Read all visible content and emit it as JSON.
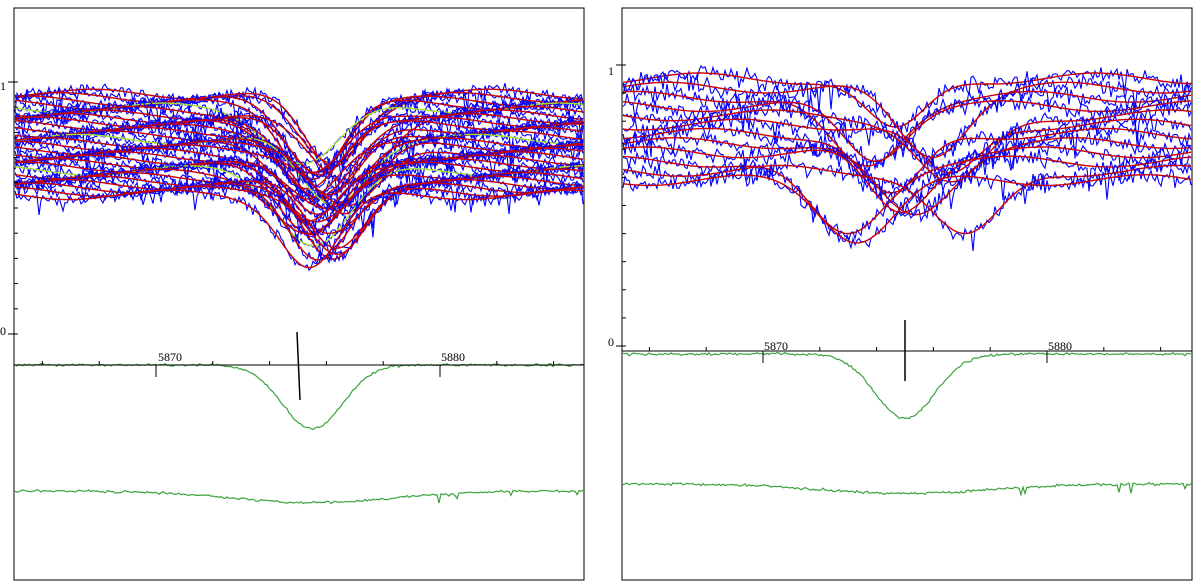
{
  "figure": {
    "panels": [
      {
        "y_tick_labels": [
          "1",
          "0"
        ],
        "x_tick_labels": [
          "5870",
          "5880"
        ]
      },
      {
        "y_tick_labels": [
          "1",
          "0"
        ],
        "x_tick_labels": [
          "5870",
          "5880"
        ]
      }
    ]
  },
  "chart_data": [
    {
      "type": "line",
      "panel": "left",
      "title": "",
      "xlabel": "",
      "ylabel": "",
      "xlim": [
        5865.1,
        5885.0
      ],
      "ylim": [
        0,
        1.05
      ],
      "x_ticks": [
        5870,
        5880
      ],
      "y_ticks": [
        0,
        1
      ],
      "grid": false,
      "legend": "none",
      "marker_x": 5875.0,
      "colors": {
        "observed": "#0000ff",
        "model": "#cc0000",
        "highlight": "#a6e22e",
        "reference": "#3aa33a"
      },
      "observed_spectra": {
        "count": 30,
        "continuum_range": [
          0.58,
          1.0
        ],
        "line_center_range": [
          5875.2,
          5876.9
        ],
        "line_depth_range": [
          0.22,
          0.3
        ],
        "line_width_A": 1.6,
        "noise": 0.035
      },
      "reference_profiles": [
        {
          "name": "",
          "continuum": 1.0,
          "line_center": 5875.5,
          "line_depth": 0.22,
          "line_width_A": 1.5
        },
        {
          "name": "",
          "continuum": 1.0,
          "line_center": 5875.5,
          "line_depth": 0.04,
          "line_width_A": 4.0
        }
      ]
    },
    {
      "type": "line",
      "panel": "right",
      "title": "",
      "xlabel": "",
      "ylabel": "",
      "xlim": [
        5865.1,
        5889.2
      ],
      "ylim": [
        0,
        1.05
      ],
      "x_ticks": [
        5870,
        5880
      ],
      "y_ticks": [
        0,
        1
      ],
      "grid": false,
      "legend": "none",
      "marker_x": 5874.8,
      "colors": {
        "observed": "#0000ff",
        "model": "#cc0000",
        "reference": "#3aa33a"
      },
      "observed_spectra": {
        "count": 12,
        "continuum_range": [
          0.62,
          1.0
        ],
        "line_center_range": [
          5872.5,
          5877.2
        ],
        "line_depth_range": [
          0.18,
          0.28
        ],
        "line_width_A": 1.7,
        "noise": 0.045
      },
      "reference_profiles": [
        {
          "name": "",
          "continuum": 1.0,
          "line_center": 5875.0,
          "line_depth": 0.2,
          "line_width_A": 1.5
        },
        {
          "name": "",
          "continuum": 1.0,
          "line_center": 5875.0,
          "line_depth": 0.03,
          "line_width_A": 4.0
        }
      ]
    }
  ]
}
